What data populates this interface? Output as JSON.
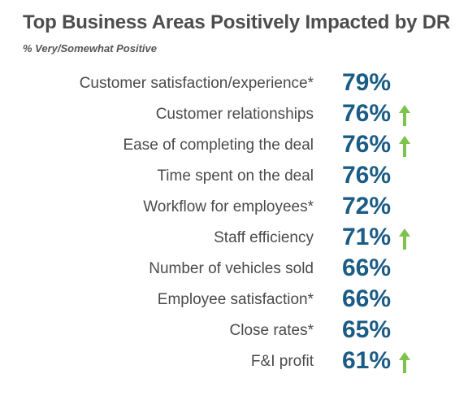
{
  "chart_data": {
    "type": "table",
    "title": "Top Business Areas Positively Impacted by DR",
    "subtitle": "% Very/Somewhat Positive",
    "value_color": "#1b5c86",
    "arrow_color": "#7dc24b",
    "rows": [
      {
        "label": "Customer satisfaction/experience*",
        "value": "79%",
        "up": false
      },
      {
        "label": "Customer relationships",
        "value": "76%",
        "up": true
      },
      {
        "label": "Ease of completing the deal",
        "value": "76%",
        "up": true
      },
      {
        "label": "Time spent on the deal",
        "value": "76%",
        "up": false
      },
      {
        "label": "Workflow for employees*",
        "value": "72%",
        "up": false
      },
      {
        "label": "Staff efficiency",
        "value": "71%",
        "up": true
      },
      {
        "label": "Number of vehicles sold",
        "value": "66%",
        "up": false
      },
      {
        "label": "Employee satisfaction*",
        "value": "66%",
        "up": false
      },
      {
        "label": "Close rates*",
        "value": "65%",
        "up": false
      },
      {
        "label": "F&I profit",
        "value": "61%",
        "up": true
      }
    ]
  }
}
